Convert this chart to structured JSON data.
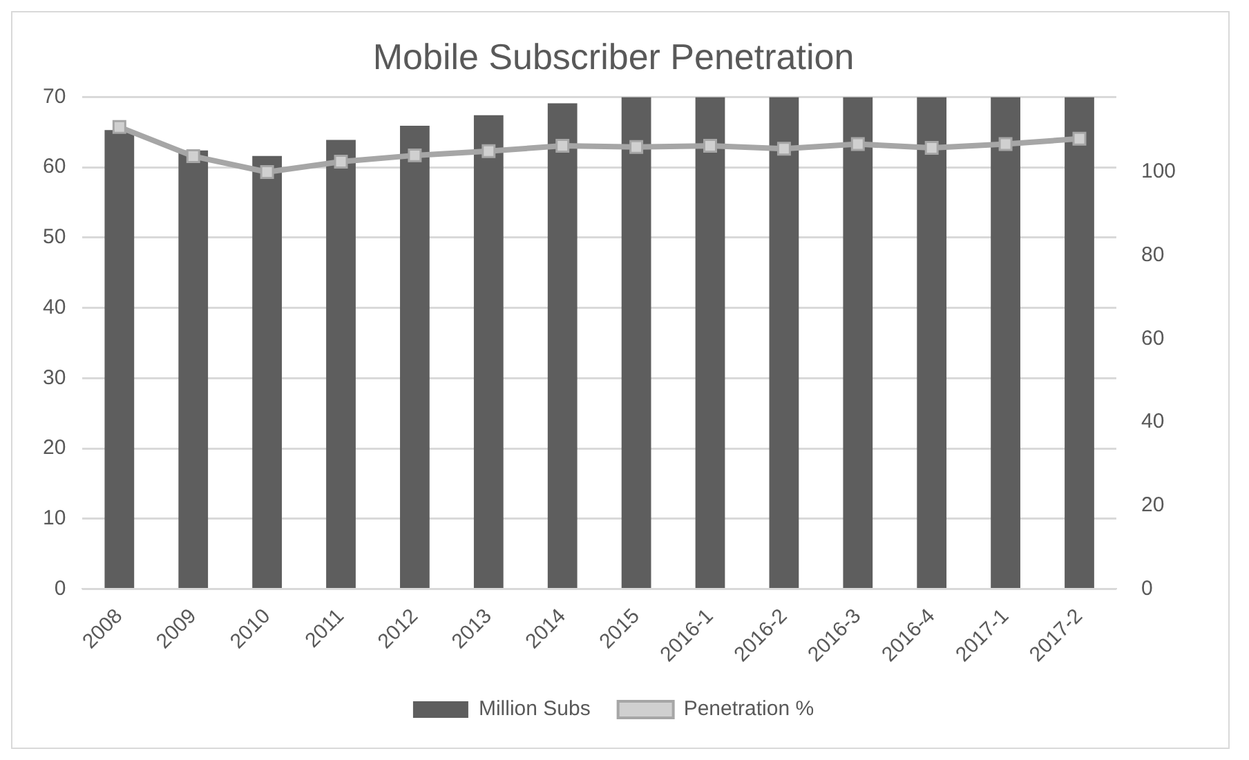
{
  "chart_data": {
    "type": "bar",
    "title": "Mobile Subscriber Penetration",
    "categories": [
      "2008",
      "2009",
      "2010",
      "2011",
      "2012",
      "2013",
      "2014",
      "2015",
      "2016-1",
      "2016-2",
      "2016-3",
      "2016-4",
      "2017-1",
      "2017-2"
    ],
    "series": [
      {
        "name": "Million Subs",
        "color": "#5e5e5e",
        "values": [
          65.3,
          62.4,
          61.6,
          63.9,
          65.9,
          67.4,
          69.1,
          70,
          70,
          70,
          70,
          70,
          70,
          70
        ]
      },
      {
        "name": "Penetration %",
        "type": "line",
        "axis": "y2",
        "color": "#a6a6a6",
        "marker": "square",
        "values": [
          110.8,
          103.8,
          100,
          102.5,
          104,
          105,
          106.3,
          106,
          106.3,
          105.6,
          106.7,
          105.8,
          106.7,
          108
        ]
      }
    ],
    "ylim": [
      0,
      70
    ],
    "yticks": [
      0,
      10,
      20,
      30,
      40,
      50,
      60,
      70
    ],
    "y2lim": [
      0,
      118
    ],
    "y2ticks": [
      0,
      20,
      40,
      60,
      80,
      100
    ],
    "grid": "y",
    "legend": "bottom"
  }
}
